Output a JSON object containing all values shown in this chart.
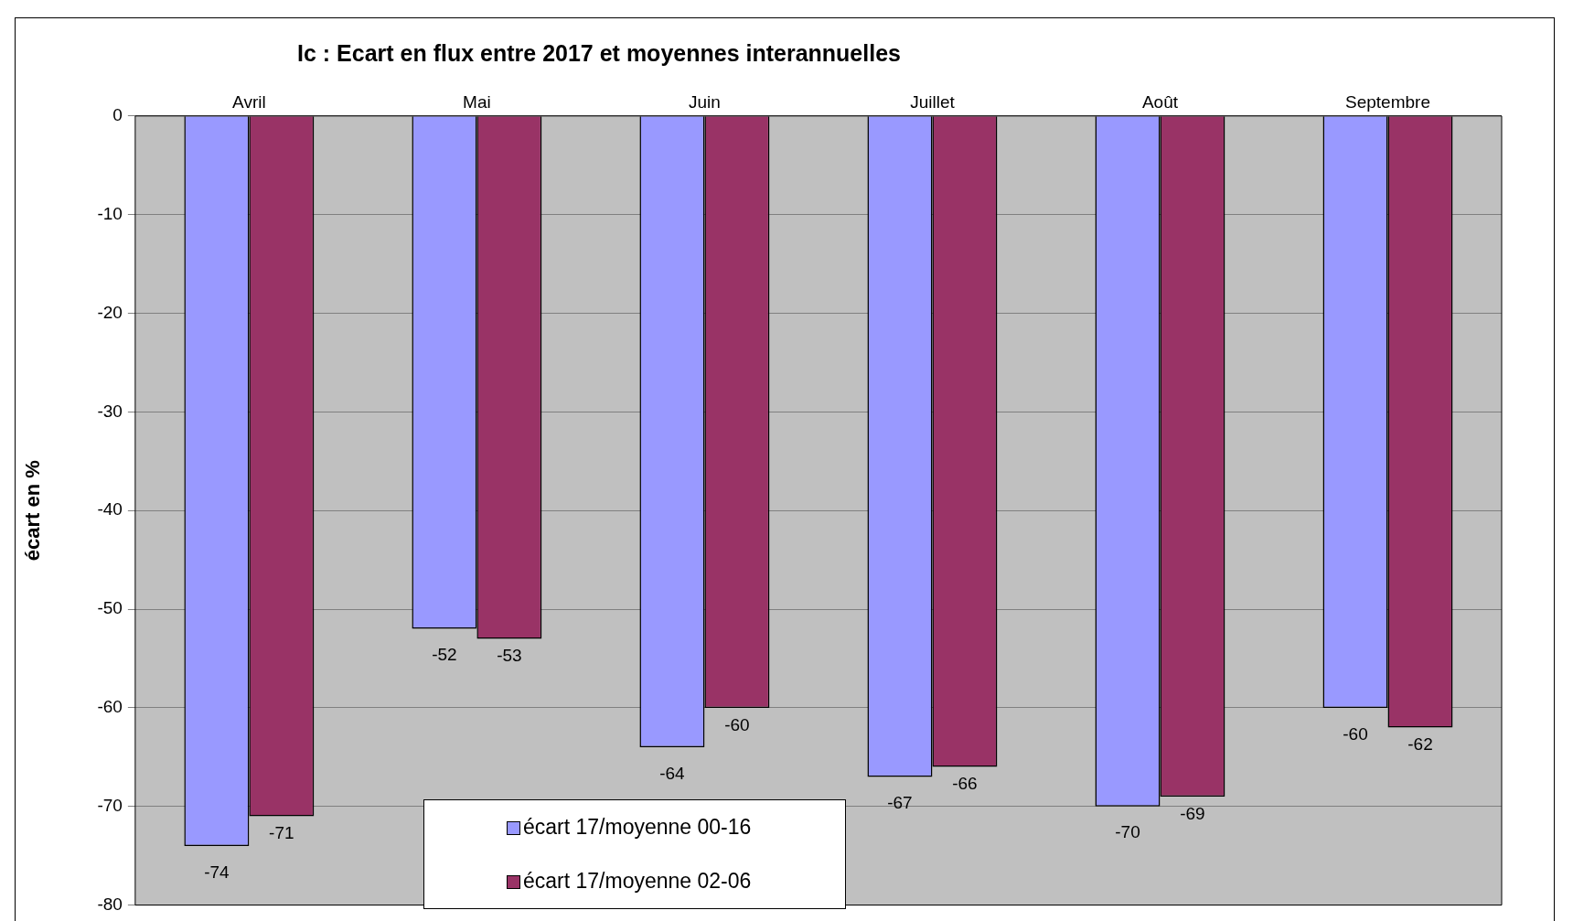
{
  "chart_data": {
    "type": "bar",
    "title": "Ic : Ecart en flux entre 2017 et moyennes interannuelles",
    "ylabel": "écart en %",
    "categories": [
      "Avril",
      "Mai",
      "Juin",
      "Juillet",
      "Août",
      "Septembre"
    ],
    "series": [
      {
        "name": "écart 17/moyenne 00-16",
        "color": "#9999ff",
        "values": [
          -74,
          -52,
          -64,
          -67,
          -70,
          -60
        ]
      },
      {
        "name": "écart 17/moyenne 02-06",
        "color": "#993366",
        "values": [
          -71,
          -53,
          -60,
          -66,
          -69,
          -62
        ]
      }
    ],
    "ylim": [
      -80,
      0
    ],
    "yticks": [
      -80,
      -70,
      -60,
      -50,
      -40,
      -30,
      -20,
      -10,
      0
    ],
    "grid": "y",
    "legend": "bottom",
    "data_labels": true
  }
}
